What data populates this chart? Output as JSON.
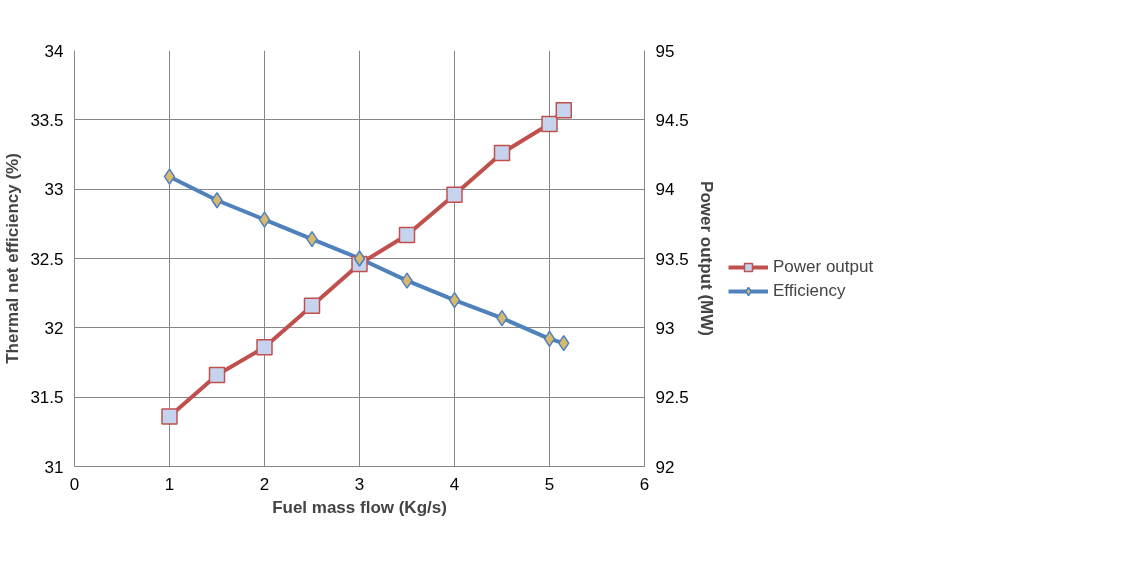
{
  "chart_data": {
    "type": "line",
    "xlabel": "Fuel mass flow (Kg/s)",
    "ylabel": "Thermal net efficiency (%)",
    "y2label": "Power output (MW)",
    "xlim": [
      0,
      6
    ],
    "xticks": [
      0,
      1,
      2,
      3,
      4,
      5,
      6
    ],
    "ylim": [
      31,
      34
    ],
    "yticks": [
      31,
      31.5,
      32,
      32.5,
      33,
      33.5,
      34
    ],
    "y2lim": [
      92,
      95
    ],
    "y2ticks": [
      92,
      92.5,
      93,
      93.5,
      94,
      94.5,
      95
    ],
    "grid": true,
    "legend": "right",
    "line_style": "solid",
    "series": [
      {
        "name": "Power output",
        "color": "#c0504d",
        "axis": "y2",
        "marker": "square",
        "x": [
          1,
          1.5,
          2,
          2.5,
          3,
          3.5,
          4,
          4.5,
          5,
          5.15
        ],
        "values": [
          92.36,
          92.66,
          92.86,
          93.16,
          93.46,
          93.67,
          93.96,
          94.26,
          94.47,
          94.57
        ]
      },
      {
        "name": "Efficiency",
        "color": "#4f81bd",
        "marker": "diamond",
        "x": [
          1,
          1.5,
          2,
          2.5,
          3,
          3.5,
          4,
          4.5,
          5,
          5.15
        ],
        "values": [
          33.09,
          32.92,
          32.78,
          32.64,
          32.5,
          32.34,
          32.2,
          32.07,
          31.92,
          31.89
        ]
      }
    ]
  }
}
